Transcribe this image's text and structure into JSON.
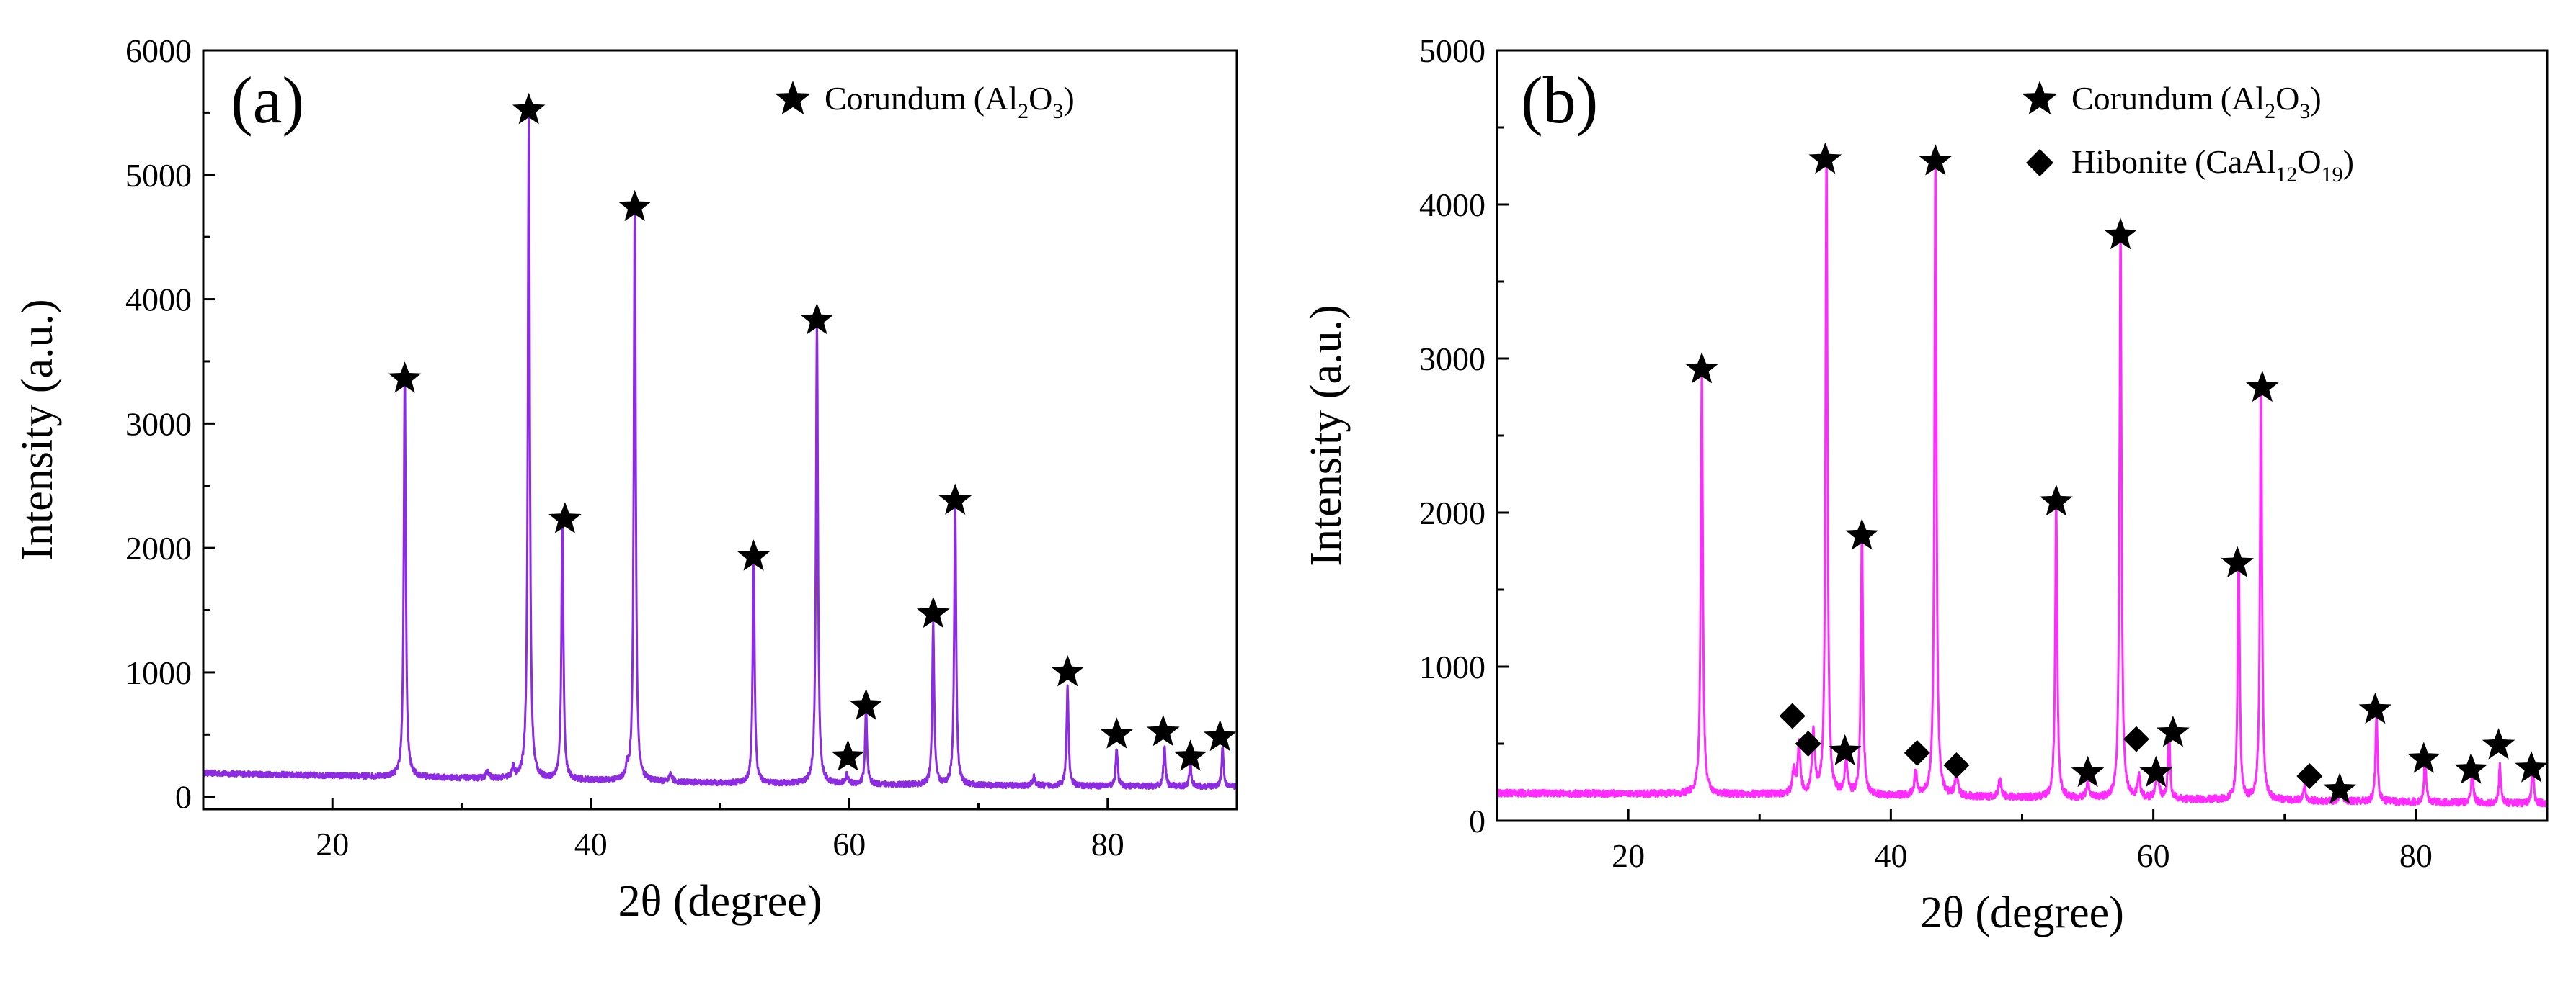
{
  "chart_data": [
    {
      "type": "line",
      "panel_label": "(a)",
      "xlabel": "2θ (degree)",
      "ylabel": "Intensity (a.u.)",
      "xlim": [
        10,
        90
      ],
      "ylim": [
        -100,
        6000
      ],
      "x_ticks": [
        20,
        40,
        60,
        80
      ],
      "y_ticks": [
        0,
        1000,
        2000,
        3000,
        4000,
        5000,
        6000
      ],
      "grid": false,
      "line_color": "#8c2be2",
      "baseline": {
        "x": [
          10,
          20,
          30,
          40,
          50,
          60,
          70,
          80,
          90
        ],
        "y": [
          190,
          170,
          150,
          130,
          110,
          100,
          90,
          85,
          80
        ]
      },
      "legend": {
        "position": "top-right",
        "entries": [
          {
            "marker": "star",
            "name": "Corundum",
            "formula": [
              [
                "(Al",
                "n"
              ],
              [
                "2",
                "sub"
              ],
              [
                "O",
                "n"
              ],
              [
                "3",
                "sub"
              ],
              [
                ")",
                "n"
              ]
            ]
          }
        ]
      },
      "peaks": [
        {
          "two_theta": 25.6,
          "intensity": 3300
        },
        {
          "two_theta": 35.2,
          "intensity": 5350
        },
        {
          "two_theta": 37.8,
          "intensity": 2120
        },
        {
          "two_theta": 43.4,
          "intensity": 4620
        },
        {
          "two_theta": 52.6,
          "intensity": 1800
        },
        {
          "two_theta": 57.5,
          "intensity": 3700
        },
        {
          "two_theta": 61.3,
          "intensity": 600
        },
        {
          "two_theta": 66.5,
          "intensity": 1300
        },
        {
          "two_theta": 68.2,
          "intensity": 2250
        },
        {
          "two_theta": 76.9,
          "intensity": 800
        },
        {
          "two_theta": 80.7,
          "intensity": 300
        },
        {
          "two_theta": 84.4,
          "intensity": 330
        },
        {
          "two_theta": 86.4,
          "intensity": 200
        },
        {
          "two_theta": 88.9,
          "intensity": 320
        }
      ],
      "minor_peaks": [
        {
          "two_theta": 32.0,
          "intensity": 60
        },
        {
          "two_theta": 34.0,
          "intensity": 80
        },
        {
          "two_theta": 42.8,
          "intensity": 70
        },
        {
          "two_theta": 46.2,
          "intensity": 60
        },
        {
          "two_theta": 59.8,
          "intensity": 70
        },
        {
          "two_theta": 74.3,
          "intensity": 70
        }
      ],
      "markers": [
        {
          "symbol": "star",
          "two_theta": 25.6,
          "intensity": 3360
        },
        {
          "symbol": "star",
          "two_theta": 35.2,
          "intensity": 5520
        },
        {
          "symbol": "star",
          "two_theta": 38.0,
          "intensity": 2230
        },
        {
          "symbol": "star",
          "two_theta": 43.4,
          "intensity": 4740
        },
        {
          "symbol": "star",
          "two_theta": 52.6,
          "intensity": 1930
        },
        {
          "symbol": "star",
          "two_theta": 57.5,
          "intensity": 3830
        },
        {
          "symbol": "star",
          "two_theta": 59.9,
          "intensity": 320
        },
        {
          "symbol": "star",
          "two_theta": 61.3,
          "intensity": 730
        },
        {
          "symbol": "star",
          "two_theta": 66.5,
          "intensity": 1470
        },
        {
          "symbol": "star",
          "two_theta": 68.2,
          "intensity": 2380
        },
        {
          "symbol": "star",
          "two_theta": 76.9,
          "intensity": 1000
        },
        {
          "symbol": "star",
          "two_theta": 80.7,
          "intensity": 500
        },
        {
          "symbol": "star",
          "two_theta": 84.3,
          "intensity": 520
        },
        {
          "symbol": "star",
          "two_theta": 86.4,
          "intensity": 320
        },
        {
          "symbol": "star",
          "two_theta": 88.7,
          "intensity": 480
        }
      ]
    },
    {
      "type": "line",
      "panel_label": "(b)",
      "xlabel": "2θ (degree)",
      "ylabel": "Intensity (a.u.)",
      "xlim": [
        10,
        90
      ],
      "ylim": [
        0,
        5000
      ],
      "x_ticks": [
        20,
        40,
        60,
        80
      ],
      "y_ticks": [
        0,
        1000,
        2000,
        3000,
        4000,
        5000
      ],
      "grid": false,
      "line_color": "#ff2bff",
      "baseline": {
        "x": [
          10,
          20,
          30,
          40,
          50,
          60,
          70,
          80,
          90
        ],
        "y": [
          180,
          175,
          170,
          160,
          150,
          140,
          130,
          120,
          110
        ]
      },
      "legend": {
        "position": "top-right",
        "entries": [
          {
            "marker": "star",
            "name": "Corundum",
            "formula": [
              [
                "(Al",
                "n"
              ],
              [
                "2",
                "sub"
              ],
              [
                "O",
                "n"
              ],
              [
                "3",
                "sub"
              ],
              [
                ")",
                "n"
              ]
            ]
          },
          {
            "marker": "diamond",
            "name": "Hibonite",
            "formula": [
              [
                "(CaAl",
                "n"
              ],
              [
                "12",
                "sub"
              ],
              [
                "O",
                "n"
              ],
              [
                "19",
                "sub"
              ],
              [
                ")",
                "n"
              ]
            ]
          }
        ]
      },
      "peaks": [
        {
          "two_theta": 25.6,
          "intensity": 2780
        },
        {
          "two_theta": 35.1,
          "intensity": 4200
        },
        {
          "two_theta": 37.8,
          "intensity": 1750
        },
        {
          "two_theta": 43.4,
          "intensity": 4170
        },
        {
          "two_theta": 52.6,
          "intensity": 1950
        },
        {
          "two_theta": 57.5,
          "intensity": 3700
        },
        {
          "two_theta": 61.2,
          "intensity": 450
        },
        {
          "two_theta": 66.5,
          "intensity": 1620
        },
        {
          "two_theta": 68.2,
          "intensity": 2700
        },
        {
          "two_theta": 77.0,
          "intensity": 570
        },
        {
          "two_theta": 80.7,
          "intensity": 300
        },
        {
          "two_theta": 84.3,
          "intensity": 230
        },
        {
          "two_theta": 86.4,
          "intensity": 250
        },
        {
          "two_theta": 88.9,
          "intensity": 250
        }
      ],
      "minor_peaks": [
        {
          "two_theta": 32.6,
          "intensity": 150
        },
        {
          "two_theta": 33.0,
          "intensity": 320
        },
        {
          "two_theta": 34.1,
          "intensity": 400
        },
        {
          "two_theta": 36.6,
          "intensity": 230
        },
        {
          "two_theta": 41.9,
          "intensity": 150
        },
        {
          "two_theta": 45.0,
          "intensity": 160
        },
        {
          "two_theta": 48.3,
          "intensity": 120
        },
        {
          "two_theta": 55.0,
          "intensity": 100
        },
        {
          "two_theta": 58.9,
          "intensity": 140
        },
        {
          "two_theta": 60.3,
          "intensity": 220
        },
        {
          "two_theta": 71.5,
          "intensity": 100
        },
        {
          "two_theta": 74.3,
          "intensity": 90
        }
      ],
      "markers": [
        {
          "symbol": "star",
          "two_theta": 25.6,
          "intensity": 2930
        },
        {
          "symbol": "star",
          "two_theta": 35.0,
          "intensity": 4290
        },
        {
          "symbol": "star",
          "two_theta": 37.8,
          "intensity": 1850
        },
        {
          "symbol": "star",
          "two_theta": 43.4,
          "intensity": 4280
        },
        {
          "symbol": "star",
          "two_theta": 52.6,
          "intensity": 2070
        },
        {
          "symbol": "star",
          "two_theta": 57.5,
          "intensity": 3800
        },
        {
          "symbol": "star",
          "two_theta": 36.5,
          "intensity": 450
        },
        {
          "symbol": "star",
          "two_theta": 55.0,
          "intensity": 310
        },
        {
          "symbol": "star",
          "two_theta": 60.2,
          "intensity": 310
        },
        {
          "symbol": "star",
          "two_theta": 61.5,
          "intensity": 570
        },
        {
          "symbol": "star",
          "two_theta": 66.4,
          "intensity": 1670
        },
        {
          "symbol": "star",
          "two_theta": 68.3,
          "intensity": 2810
        },
        {
          "symbol": "star",
          "two_theta": 74.2,
          "intensity": 200
        },
        {
          "symbol": "star",
          "two_theta": 76.9,
          "intensity": 720
        },
        {
          "symbol": "star",
          "two_theta": 80.6,
          "intensity": 400
        },
        {
          "symbol": "star",
          "two_theta": 84.2,
          "intensity": 330
        },
        {
          "symbol": "star",
          "two_theta": 86.3,
          "intensity": 490
        },
        {
          "symbol": "star",
          "two_theta": 88.8,
          "intensity": 340
        },
        {
          "symbol": "diamond",
          "two_theta": 32.5,
          "intensity": 680
        },
        {
          "symbol": "diamond",
          "two_theta": 33.7,
          "intensity": 500
        },
        {
          "symbol": "diamond",
          "two_theta": 42.0,
          "intensity": 440
        },
        {
          "symbol": "diamond",
          "two_theta": 45.0,
          "intensity": 360
        },
        {
          "symbol": "diamond",
          "two_theta": 58.7,
          "intensity": 530
        },
        {
          "symbol": "diamond",
          "two_theta": 71.9,
          "intensity": 290
        }
      ]
    }
  ]
}
